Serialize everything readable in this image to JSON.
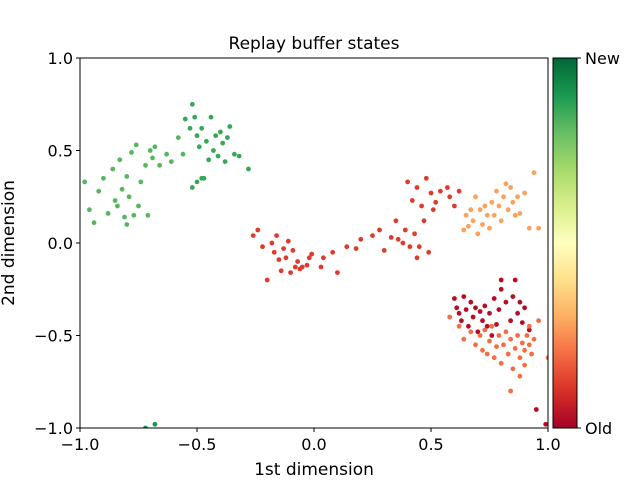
{
  "chart_data": {
    "type": "scatter",
    "title": "Replay buffer states",
    "xlabel": "1st dimension",
    "ylabel": "2nd dimension",
    "xlim": [
      -1.0,
      1.0
    ],
    "ylim": [
      -1.0,
      1.0
    ],
    "xticks": [
      "−1.0",
      "−0.5",
      "0.0",
      "0.5",
      "1.0"
    ],
    "yticks": [
      "−1.0",
      "−0.5",
      "0.0",
      "0.5",
      "1.0"
    ],
    "grid": false,
    "colormap": "RdYlGn",
    "colorbar": {
      "top_label": "New",
      "bottom_label": "Old"
    },
    "points": [
      [
        -0.98,
        0.33,
        0.82
      ],
      [
        -0.96,
        0.18,
        0.82
      ],
      [
        -0.94,
        0.11,
        0.82
      ],
      [
        -0.92,
        0.28,
        0.82
      ],
      [
        -0.9,
        0.35,
        0.82
      ],
      [
        -0.88,
        0.16,
        0.82
      ],
      [
        -0.86,
        0.4,
        0.82
      ],
      [
        -0.85,
        0.23,
        0.82
      ],
      [
        -0.84,
        0.2,
        0.82
      ],
      [
        -0.83,
        0.45,
        0.82
      ],
      [
        -0.82,
        0.29,
        0.82
      ],
      [
        -0.81,
        0.14,
        0.82
      ],
      [
        -0.8,
        0.36,
        0.82
      ],
      [
        -0.8,
        0.1,
        0.82
      ],
      [
        -0.79,
        0.25,
        0.82
      ],
      [
        -0.78,
        0.49,
        0.82
      ],
      [
        -0.77,
        0.15,
        0.82
      ],
      [
        -0.76,
        0.53,
        0.82
      ],
      [
        -0.75,
        0.2,
        0.82
      ],
      [
        -0.74,
        0.33,
        0.82
      ],
      [
        -0.72,
        0.42,
        0.82
      ],
      [
        -0.71,
        0.15,
        0.82
      ],
      [
        -0.7,
        0.5,
        0.82
      ],
      [
        -0.69,
        0.46,
        0.82
      ],
      [
        -0.68,
        0.52,
        0.82
      ],
      [
        -0.66,
        0.42,
        0.82
      ],
      [
        -0.63,
        0.48,
        0.82
      ],
      [
        -0.61,
        0.44,
        0.82
      ],
      [
        -0.58,
        0.57,
        0.82
      ],
      [
        -0.56,
        0.48,
        0.82
      ],
      [
        -0.55,
        0.67,
        0.86
      ],
      [
        -0.53,
        0.62,
        0.86
      ],
      [
        -0.52,
        0.75,
        0.86
      ],
      [
        -0.51,
        0.68,
        0.86
      ],
      [
        -0.5,
        0.58,
        0.86
      ],
      [
        -0.49,
        0.52,
        0.86
      ],
      [
        -0.48,
        0.62,
        0.86
      ],
      [
        -0.47,
        0.35,
        0.86
      ],
      [
        -0.46,
        0.55,
        0.86
      ],
      [
        -0.45,
        0.45,
        0.86
      ],
      [
        -0.44,
        0.68,
        0.86
      ],
      [
        -0.43,
        0.5,
        0.86
      ],
      [
        -0.42,
        0.58,
        0.86
      ],
      [
        -0.41,
        0.47,
        0.86
      ],
      [
        -0.4,
        0.6,
        0.86
      ],
      [
        -0.39,
        0.54,
        0.86
      ],
      [
        -0.38,
        0.44,
        0.86
      ],
      [
        -0.37,
        0.57,
        0.86
      ],
      [
        -0.52,
        0.3,
        0.86
      ],
      [
        -0.5,
        0.33,
        0.86
      ],
      [
        -0.48,
        0.35,
        0.86
      ],
      [
        -0.36,
        0.63,
        0.86
      ],
      [
        -0.34,
        0.48,
        0.86
      ],
      [
        -0.32,
        0.47,
        0.86
      ],
      [
        -0.28,
        0.4,
        0.86
      ],
      [
        -0.68,
        -0.98,
        0.9
      ],
      [
        -0.72,
        -1.0,
        0.9
      ],
      [
        -0.26,
        0.04,
        0.12
      ],
      [
        -0.24,
        0.07,
        0.12
      ],
      [
        -0.22,
        -0.02,
        0.12
      ],
      [
        -0.2,
        -0.2,
        0.12
      ],
      [
        -0.18,
        0.0,
        0.12
      ],
      [
        -0.17,
        -0.05,
        0.12
      ],
      [
        -0.16,
        0.04,
        0.12
      ],
      [
        -0.15,
        -0.09,
        0.12
      ],
      [
        -0.14,
        -0.15,
        0.12
      ],
      [
        -0.13,
        -0.03,
        0.12
      ],
      [
        -0.12,
        -0.08,
        0.12
      ],
      [
        -0.11,
        0.01,
        0.12
      ],
      [
        -0.1,
        -0.16,
        0.12
      ],
      [
        -0.09,
        -0.04,
        0.12
      ],
      [
        -0.08,
        -0.13,
        0.12
      ],
      [
        -0.07,
        -0.1,
        0.12
      ],
      [
        -0.06,
        -0.14,
        0.12
      ],
      [
        -0.05,
        -0.13,
        0.12
      ],
      [
        -0.03,
        -0.12,
        0.12
      ],
      [
        -0.02,
        -0.08,
        0.12
      ],
      [
        -0.01,
        -0.06,
        0.12
      ],
      [
        0.03,
        -0.13,
        0.12
      ],
      [
        0.04,
        -0.08,
        0.12
      ],
      [
        0.08,
        -0.05,
        0.12
      ],
      [
        0.1,
        -0.16,
        0.12
      ],
      [
        0.14,
        -0.02,
        0.12
      ],
      [
        0.18,
        -0.03,
        0.12
      ],
      [
        0.2,
        0.02,
        0.12
      ],
      [
        0.25,
        0.04,
        0.12
      ],
      [
        0.28,
        0.07,
        0.12
      ],
      [
        0.3,
        -0.04,
        0.12
      ],
      [
        0.33,
        0.03,
        0.12
      ],
      [
        0.35,
        0.12,
        0.12
      ],
      [
        0.36,
        0.02,
        0.12
      ],
      [
        0.38,
        0.0,
        0.12
      ],
      [
        0.39,
        0.07,
        0.12
      ],
      [
        0.4,
        0.33,
        0.12
      ],
      [
        0.41,
        -0.02,
        0.12
      ],
      [
        0.42,
        0.23,
        0.12
      ],
      [
        0.43,
        0.05,
        0.12
      ],
      [
        0.44,
        0.3,
        0.12
      ],
      [
        0.45,
        -0.02,
        0.12
      ],
      [
        0.46,
        0.2,
        0.12
      ],
      [
        0.47,
        0.12,
        0.12
      ],
      [
        0.48,
        0.35,
        0.12
      ],
      [
        0.49,
        -0.05,
        0.12
      ],
      [
        0.5,
        0.27,
        0.12
      ],
      [
        0.51,
        0.18,
        0.12
      ],
      [
        0.52,
        0.22,
        0.12
      ],
      [
        0.54,
        0.28,
        0.12
      ],
      [
        0.57,
        0.3,
        0.12
      ],
      [
        0.58,
        0.25,
        0.12
      ],
      [
        0.6,
        0.2,
        0.12
      ],
      [
        0.62,
        0.28,
        0.12
      ],
      [
        0.44,
        -0.08,
        0.12
      ],
      [
        0.64,
        0.07,
        0.28
      ],
      [
        0.65,
        0.15,
        0.28
      ],
      [
        0.66,
        0.09,
        0.28
      ],
      [
        0.67,
        0.18,
        0.28
      ],
      [
        0.68,
        0.12,
        0.28
      ],
      [
        0.69,
        0.25,
        0.28
      ],
      [
        0.7,
        0.05,
        0.28
      ],
      [
        0.71,
        0.18,
        0.28
      ],
      [
        0.72,
        0.1,
        0.28
      ],
      [
        0.73,
        0.2,
        0.28
      ],
      [
        0.74,
        0.15,
        0.28
      ],
      [
        0.75,
        0.08,
        0.28
      ],
      [
        0.76,
        0.22,
        0.28
      ],
      [
        0.77,
        0.15,
        0.28
      ],
      [
        0.78,
        0.28,
        0.28
      ],
      [
        0.79,
        0.2,
        0.28
      ],
      [
        0.8,
        0.12,
        0.28
      ],
      [
        0.81,
        0.25,
        0.28
      ],
      [
        0.82,
        0.32,
        0.28
      ],
      [
        0.83,
        0.18,
        0.28
      ],
      [
        0.84,
        0.3,
        0.28
      ],
      [
        0.85,
        0.22,
        0.28
      ],
      [
        0.86,
        0.15,
        0.28
      ],
      [
        0.87,
        0.25,
        0.28
      ],
      [
        0.88,
        0.16,
        0.28
      ],
      [
        0.9,
        0.27,
        0.28
      ],
      [
        0.92,
        0.08,
        0.28
      ],
      [
        0.94,
        0.38,
        0.28
      ],
      [
        0.96,
        0.08,
        0.28
      ],
      [
        0.6,
        -0.3,
        0.03
      ],
      [
        0.61,
        -0.35,
        0.03
      ],
      [
        0.62,
        -0.38,
        0.03
      ],
      [
        0.63,
        -0.42,
        0.03
      ],
      [
        0.64,
        -0.29,
        0.03
      ],
      [
        0.65,
        -0.36,
        0.03
      ],
      [
        0.66,
        -0.45,
        0.03
      ],
      [
        0.67,
        -0.32,
        0.03
      ],
      [
        0.68,
        -0.4,
        0.03
      ],
      [
        0.69,
        -0.35,
        0.03
      ],
      [
        0.7,
        -0.48,
        0.03
      ],
      [
        0.71,
        -0.37,
        0.03
      ],
      [
        0.72,
        -0.42,
        0.03
      ],
      [
        0.73,
        -0.34,
        0.03
      ],
      [
        0.74,
        -0.45,
        0.03
      ],
      [
        0.75,
        -0.38,
        0.03
      ],
      [
        0.76,
        -0.5,
        0.03
      ],
      [
        0.77,
        -0.3,
        0.03
      ],
      [
        0.78,
        -0.44,
        0.03
      ],
      [
        0.79,
        -0.36,
        0.03
      ],
      [
        0.8,
        -0.25,
        0.03
      ],
      [
        0.82,
        -0.32,
        0.03
      ],
      [
        0.84,
        -0.42,
        0.03
      ],
      [
        0.85,
        -0.29,
        0.03
      ],
      [
        0.86,
        -0.2,
        0.03
      ],
      [
        0.87,
        -0.38,
        0.03
      ],
      [
        0.88,
        -0.32,
        0.03
      ],
      [
        0.89,
        -0.43,
        0.03
      ],
      [
        0.9,
        -0.35,
        0.03
      ],
      [
        0.92,
        -0.47,
        0.03
      ],
      [
        0.95,
        -0.9,
        0.03
      ],
      [
        0.99,
        -0.98,
        0.03
      ],
      [
        0.8,
        -0.2,
        0.03
      ],
      [
        0.58,
        -0.4,
        0.2
      ],
      [
        0.62,
        -0.45,
        0.2
      ],
      [
        0.64,
        -0.52,
        0.2
      ],
      [
        0.67,
        -0.48,
        0.2
      ],
      [
        0.69,
        -0.55,
        0.2
      ],
      [
        0.71,
        -0.5,
        0.2
      ],
      [
        0.72,
        -0.58,
        0.2
      ],
      [
        0.73,
        -0.47,
        0.2
      ],
      [
        0.74,
        -0.6,
        0.2
      ],
      [
        0.75,
        -0.53,
        0.2
      ],
      [
        0.76,
        -0.45,
        0.2
      ],
      [
        0.77,
        -0.62,
        0.2
      ],
      [
        0.78,
        -0.56,
        0.2
      ],
      [
        0.79,
        -0.5,
        0.2
      ],
      [
        0.8,
        -0.65,
        0.2
      ],
      [
        0.81,
        -0.55,
        0.2
      ],
      [
        0.82,
        -0.48,
        0.2
      ],
      [
        0.83,
        -0.6,
        0.2
      ],
      [
        0.84,
        -0.52,
        0.2
      ],
      [
        0.85,
        -0.68,
        0.2
      ],
      [
        0.86,
        -0.57,
        0.2
      ],
      [
        0.87,
        -0.5,
        0.2
      ],
      [
        0.88,
        -0.62,
        0.2
      ],
      [
        0.89,
        -0.54,
        0.2
      ],
      [
        0.9,
        -0.58,
        0.2
      ],
      [
        0.91,
        -0.5,
        0.2
      ],
      [
        0.92,
        -0.45,
        0.2
      ],
      [
        0.93,
        -0.6,
        0.2
      ],
      [
        0.94,
        -0.52,
        0.2
      ],
      [
        0.96,
        -0.42,
        0.2
      ],
      [
        0.88,
        -0.72,
        0.2
      ],
      [
        0.84,
        -0.8,
        0.2
      ],
      [
        0.9,
        -0.66,
        0.2
      ],
      [
        1.0,
        -0.62,
        0.2
      ],
      [
        0.92,
        -0.55,
        0.2
      ]
    ]
  }
}
